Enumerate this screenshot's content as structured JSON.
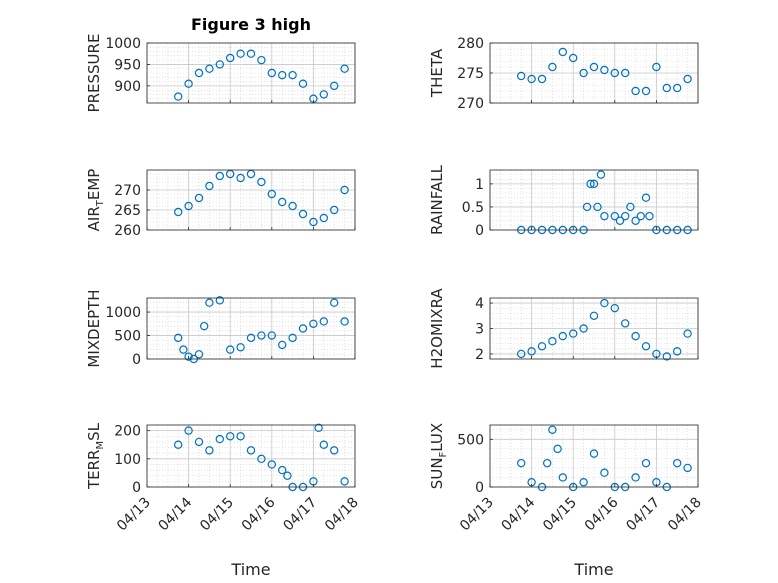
{
  "figure": {
    "title": "Figure 3 high",
    "xlabel": "Time",
    "marker_color": "#0072bd",
    "x_ticks": [
      "04/13",
      "04/14",
      "04/15",
      "04/16",
      "04/17",
      "04/18"
    ],
    "x_range": [
      "04/13",
      "04/18"
    ]
  },
  "chart_data": [
    {
      "type": "scatter",
      "id": "p1",
      "ylabel": "PRESSURE",
      "ylim": [
        860,
        1000
      ],
      "yticks": [
        900,
        950,
        1000
      ],
      "grid": true,
      "x": [
        "04/13 18:00",
        "04/14 00:00",
        "04/14 06:00",
        "04/14 12:00",
        "04/14 18:00",
        "04/15 00:00",
        "04/15 06:00",
        "04/15 12:00",
        "04/15 18:00",
        "04/16 00:00",
        "04/16 06:00",
        "04/16 12:00",
        "04/16 18:00",
        "04/17 00:00",
        "04/17 06:00",
        "04/17 12:00",
        "04/17 18:00"
      ],
      "y": [
        875,
        905,
        930,
        940,
        950,
        965,
        975,
        975,
        960,
        930,
        925,
        925,
        905,
        870,
        880,
        900,
        940
      ]
    },
    {
      "type": "scatter",
      "id": "p2",
      "ylabel": "THETA",
      "ylim": [
        270,
        280
      ],
      "yticks": [
        270,
        275,
        280
      ],
      "grid": true,
      "x": [
        "04/13 18:00",
        "04/14 00:00",
        "04/14 06:00",
        "04/14 12:00",
        "04/14 18:00",
        "04/15 00:00",
        "04/15 06:00",
        "04/15 12:00",
        "04/15 18:00",
        "04/16 00:00",
        "04/16 06:00",
        "04/16 12:00",
        "04/16 18:00",
        "04/17 00:00",
        "04/17 06:00",
        "04/17 12:00",
        "04/17 18:00"
      ],
      "y": [
        274.5,
        274,
        274,
        276,
        278.5,
        277.5,
        275,
        276,
        275.5,
        275,
        275,
        272,
        272,
        276,
        272.5,
        272.5,
        274
      ]
    },
    {
      "type": "scatter",
      "id": "p3",
      "ylabel": "AIR_TEMP",
      "ylim": [
        260,
        275
      ],
      "yticks": [
        260,
        265,
        270
      ],
      "grid": true,
      "x": [
        "04/13 18:00",
        "04/14 00:00",
        "04/14 06:00",
        "04/14 12:00",
        "04/14 18:00",
        "04/15 00:00",
        "04/15 06:00",
        "04/15 12:00",
        "04/15 18:00",
        "04/16 00:00",
        "04/16 06:00",
        "04/16 12:00",
        "04/16 18:00",
        "04/17 00:00",
        "04/17 06:00",
        "04/17 12:00",
        "04/17 18:00"
      ],
      "y": [
        264.5,
        266,
        268,
        271,
        273.5,
        274,
        273,
        274,
        272,
        269,
        267,
        266,
        264,
        262,
        263,
        265,
        270
      ]
    },
    {
      "type": "scatter",
      "id": "p4",
      "ylabel": "RAINFALL",
      "ylim": [
        0,
        1.3
      ],
      "yticks": [
        0,
        0.5,
        1
      ],
      "grid": true,
      "x": [
        "04/13 18:00",
        "04/14 00:00",
        "04/14 06:00",
        "04/14 12:00",
        "04/14 18:00",
        "04/15 00:00",
        "04/15 06:00",
        "04/15 08:00",
        "04/15 10:00",
        "04/15 12:00",
        "04/15 14:00",
        "04/15 16:00",
        "04/15 18:00",
        "04/16 00:00",
        "04/16 03:00",
        "04/16 06:00",
        "04/16 09:00",
        "04/16 12:00",
        "04/16 15:00",
        "04/16 18:00",
        "04/16 20:00",
        "04/17 00:00",
        "04/17 06:00",
        "04/17 12:00",
        "04/17 18:00"
      ],
      "y": [
        0,
        0,
        0,
        0,
        0,
        0,
        0,
        0.5,
        1,
        1,
        0.5,
        1.2,
        0.3,
        0.3,
        0.2,
        0.3,
        0.5,
        0.2,
        0.3,
        0.7,
        0.3,
        0,
        0,
        0,
        0
      ]
    },
    {
      "type": "scatter",
      "id": "p5",
      "ylabel": "MIXDEPTH",
      "ylim": [
        0,
        1300
      ],
      "yticks": [
        0,
        500,
        1000
      ],
      "grid": true,
      "x": [
        "04/13 18:00",
        "04/13 21:00",
        "04/14 00:00",
        "04/14 03:00",
        "04/14 06:00",
        "04/14 09:00",
        "04/14 12:00",
        "04/14 18:00",
        "04/15 00:00",
        "04/15 06:00",
        "04/15 12:00",
        "04/15 18:00",
        "04/16 00:00",
        "04/16 06:00",
        "04/16 12:00",
        "04/16 18:00",
        "04/17 00:00",
        "04/17 06:00",
        "04/17 12:00",
        "04/17 18:00"
      ],
      "y": [
        450,
        200,
        50,
        0,
        100,
        700,
        1200,
        1250,
        200,
        250,
        450,
        500,
        500,
        300,
        450,
        650,
        750,
        800,
        1200,
        800
      ]
    },
    {
      "type": "scatter",
      "id": "p6",
      "ylabel": "H2OMIXRA",
      "ylim": [
        1.8,
        4.2
      ],
      "yticks": [
        2,
        3,
        4
      ],
      "grid": true,
      "x": [
        "04/13 18:00",
        "04/14 00:00",
        "04/14 06:00",
        "04/14 12:00",
        "04/14 18:00",
        "04/15 00:00",
        "04/15 06:00",
        "04/15 12:00",
        "04/15 18:00",
        "04/16 00:00",
        "04/16 06:00",
        "04/16 12:00",
        "04/16 18:00",
        "04/17 00:00",
        "04/17 06:00",
        "04/17 12:00",
        "04/17 18:00"
      ],
      "y": [
        2,
        2.1,
        2.3,
        2.5,
        2.7,
        2.8,
        3,
        3.5,
        4,
        3.8,
        3.2,
        2.7,
        2.3,
        2,
        1.9,
        2.1,
        2.8
      ]
    },
    {
      "type": "scatter",
      "id": "p7",
      "ylabel": "TERR_MSL",
      "ylim": [
        0,
        220
      ],
      "yticks": [
        0,
        100,
        200
      ],
      "grid": true,
      "x": [
        "04/13 18:00",
        "04/14 00:00",
        "04/14 06:00",
        "04/14 12:00",
        "04/14 18:00",
        "04/15 00:00",
        "04/15 06:00",
        "04/15 12:00",
        "04/15 18:00",
        "04/16 00:00",
        "04/16 06:00",
        "04/16 09:00",
        "04/16 12:00",
        "04/16 18:00",
        "04/17 00:00",
        "04/17 03:00",
        "04/17 06:00",
        "04/17 12:00",
        "04/17 18:00"
      ],
      "y": [
        150,
        200,
        160,
        130,
        170,
        180,
        180,
        130,
        100,
        80,
        60,
        40,
        0,
        0,
        20,
        210,
        150,
        130,
        20
      ]
    },
    {
      "type": "scatter",
      "id": "p8",
      "ylabel": "SUN_FLUX",
      "ylim": [
        0,
        650
      ],
      "yticks": [
        0,
        500
      ],
      "grid": true,
      "x": [
        "04/13 18:00",
        "04/14 00:00",
        "04/14 06:00",
        "04/14 09:00",
        "04/14 12:00",
        "04/14 15:00",
        "04/14 18:00",
        "04/15 00:00",
        "04/15 06:00",
        "04/15 12:00",
        "04/15 18:00",
        "04/16 00:00",
        "04/16 06:00",
        "04/16 12:00",
        "04/16 18:00",
        "04/17 00:00",
        "04/17 06:00",
        "04/17 12:00",
        "04/17 18:00"
      ],
      "y": [
        250,
        50,
        0,
        250,
        600,
        400,
        100,
        0,
        50,
        350,
        150,
        0,
        0,
        100,
        250,
        50,
        0,
        250,
        200
      ]
    }
  ]
}
